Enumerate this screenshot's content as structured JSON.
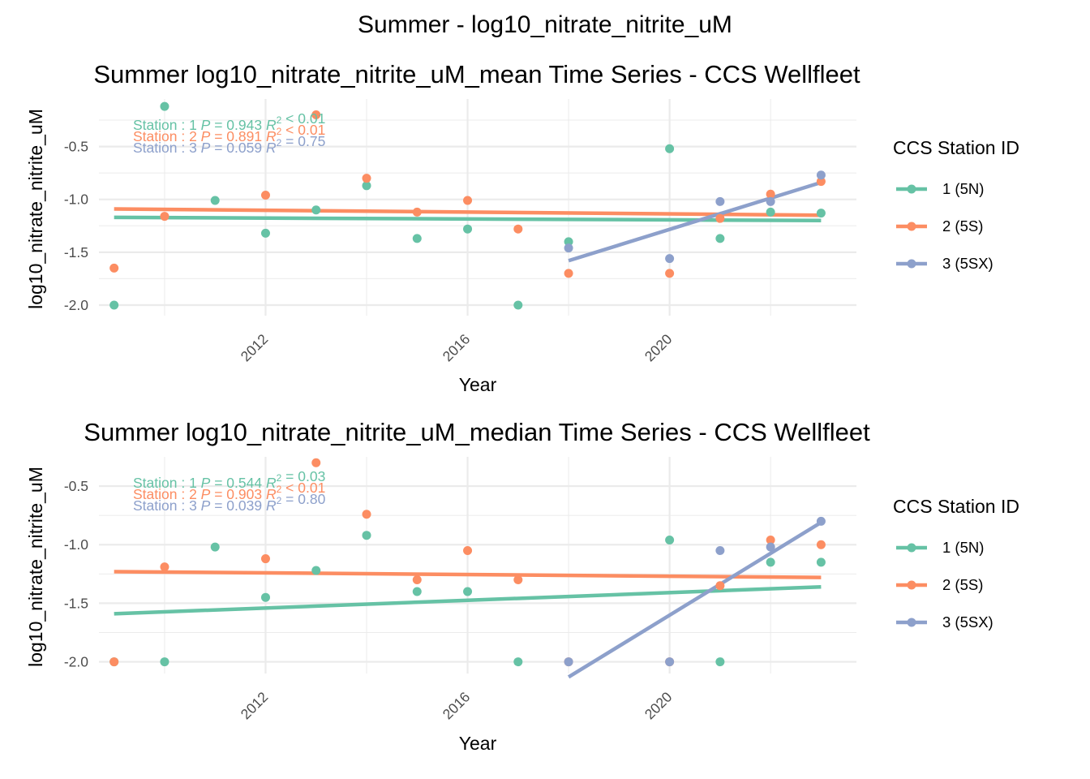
{
  "figure_title": "Summer - log10_nitrate_nitrite_uM",
  "colors": {
    "station_1": "#66C2A5",
    "station_2": "#FC8D62",
    "station_3": "#8DA0CB",
    "grid": "#EBEBEB",
    "text": "#000000",
    "tick_text": "#4D4D4D"
  },
  "chart_data": [
    {
      "type": "scatter",
      "title": "Summer log10_nitrate_nitrite_uM_mean Time Series - CCS Wellfleet",
      "xlabel": "Year",
      "ylabel": "log10_nitrate_nitrite_uM",
      "xlim": [
        2008.7,
        2023.7
      ],
      "ylim": [
        -2.1,
        -0.05
      ],
      "x_ticks": [
        2012,
        2016,
        2020
      ],
      "x_ticklabels": [
        "2012",
        "2016",
        "2020"
      ],
      "y_ticks": [
        -2.0,
        -1.5,
        -1.0,
        -0.5
      ],
      "y_ticklabels": [
        "-2.0",
        "-1.5",
        "-1.0",
        "-0.5"
      ],
      "grid": true,
      "legend": {
        "title": "CCS Station ID",
        "position": "right",
        "entries": [
          "1 (5N)",
          "2 (5S)",
          "3 (5SX)"
        ]
      },
      "series": [
        {
          "name": "1 (5N)",
          "points": [
            [
              2009,
              -2.0
            ],
            [
              2010,
              -0.12
            ],
            [
              2011,
              -1.01
            ],
            [
              2012,
              -1.32
            ],
            [
              2013,
              -1.1
            ],
            [
              2014,
              -0.87
            ],
            [
              2015,
              -1.37
            ],
            [
              2016,
              -1.28
            ],
            [
              2017,
              -2.0
            ],
            [
              2018,
              -1.4
            ],
            [
              2020,
              -0.52
            ],
            [
              2021,
              -1.37
            ],
            [
              2022,
              -1.12
            ],
            [
              2023,
              -1.13
            ]
          ],
          "trend": [
            [
              2009,
              -1.17
            ],
            [
              2023,
              -1.2
            ]
          ],
          "stats": {
            "station": "1",
            "p": "0.943",
            "r2": "< 0.01"
          }
        },
        {
          "name": "2 (5S)",
          "points": [
            [
              2009,
              -1.65
            ],
            [
              2010,
              -1.16
            ],
            [
              2012,
              -0.96
            ],
            [
              2013,
              -0.2
            ],
            [
              2014,
              -0.8
            ],
            [
              2015,
              -1.12
            ],
            [
              2016,
              -1.01
            ],
            [
              2017,
              -1.28
            ],
            [
              2018,
              -1.7
            ],
            [
              2020,
              -1.7
            ],
            [
              2021,
              -1.18
            ],
            [
              2022,
              -0.95
            ],
            [
              2023,
              -0.83
            ]
          ],
          "trend": [
            [
              2009,
              -1.09
            ],
            [
              2023,
              -1.15
            ]
          ],
          "stats": {
            "station": "2",
            "p": "0.891",
            "r2": "< 0.01"
          }
        },
        {
          "name": "3 (5SX)",
          "points": [
            [
              2018,
              -1.46
            ],
            [
              2020,
              -1.56
            ],
            [
              2021,
              -1.02
            ],
            [
              2022,
              -1.02
            ],
            [
              2023,
              -0.77
            ]
          ],
          "trend": [
            [
              2018,
              -1.58
            ],
            [
              2023,
              -0.84
            ]
          ],
          "stats": {
            "station": "3",
            "p": "0.059",
            "r2": "= 0.75"
          }
        }
      ]
    },
    {
      "type": "scatter",
      "title": "Summer log10_nitrate_nitrite_uM_median Time Series - CCS Wellfleet",
      "xlabel": "Year",
      "ylabel": "log10_nitrate_nitrite_uM",
      "xlim": [
        2008.7,
        2023.7
      ],
      "ylim": [
        -2.1,
        -0.25
      ],
      "x_ticks": [
        2012,
        2016,
        2020
      ],
      "x_ticklabels": [
        "2012",
        "2016",
        "2020"
      ],
      "y_ticks": [
        -2.0,
        -1.5,
        -1.0,
        -0.5
      ],
      "y_ticklabels": [
        "-2.0",
        "-1.5",
        "-1.0",
        "-0.5"
      ],
      "grid": true,
      "legend": {
        "title": "CCS Station ID",
        "position": "right",
        "entries": [
          "1 (5N)",
          "2 (5S)",
          "3 (5SX)"
        ]
      },
      "series": [
        {
          "name": "1 (5N)",
          "points": [
            [
              2009,
              -2.0
            ],
            [
              2010,
              -2.0
            ],
            [
              2011,
              -1.02
            ],
            [
              2012,
              -1.45
            ],
            [
              2013,
              -1.22
            ],
            [
              2014,
              -0.92
            ],
            [
              2015,
              -1.4
            ],
            [
              2016,
              -1.4
            ],
            [
              2017,
              -2.0
            ],
            [
              2020,
              -0.96
            ],
            [
              2021,
              -2.0
            ],
            [
              2022,
              -1.15
            ],
            [
              2023,
              -1.15
            ]
          ],
          "trend": [
            [
              2009,
              -1.59
            ],
            [
              2023,
              -1.36
            ]
          ],
          "stats": {
            "station": "1",
            "p": "0.544",
            "r2": "= 0.03"
          }
        },
        {
          "name": "2 (5S)",
          "points": [
            [
              2009,
              -2.0
            ],
            [
              2010,
              -1.19
            ],
            [
              2012,
              -1.12
            ],
            [
              2013,
              -0.3
            ],
            [
              2014,
              -0.74
            ],
            [
              2015,
              -1.3
            ],
            [
              2016,
              -1.05
            ],
            [
              2017,
              -1.3
            ],
            [
              2018,
              -2.0
            ],
            [
              2020,
              -2.0
            ],
            [
              2021,
              -1.35
            ],
            [
              2022,
              -0.96
            ],
            [
              2023,
              -1.0
            ]
          ],
          "trend": [
            [
              2009,
              -1.23
            ],
            [
              2023,
              -1.28
            ]
          ],
          "stats": {
            "station": "2",
            "p": "0.903",
            "r2": "< 0.01"
          }
        },
        {
          "name": "3 (5SX)",
          "points": [
            [
              2018,
              -2.0
            ],
            [
              2020,
              -2.0
            ],
            [
              2021,
              -1.05
            ],
            [
              2022,
              -1.02
            ],
            [
              2023,
              -0.8
            ]
          ],
          "trend": [
            [
              2018,
              -2.13
            ],
            [
              2023,
              -0.81
            ]
          ],
          "stats": {
            "station": "3",
            "p": "0.039",
            "r2": "= 0.80"
          }
        }
      ]
    }
  ]
}
